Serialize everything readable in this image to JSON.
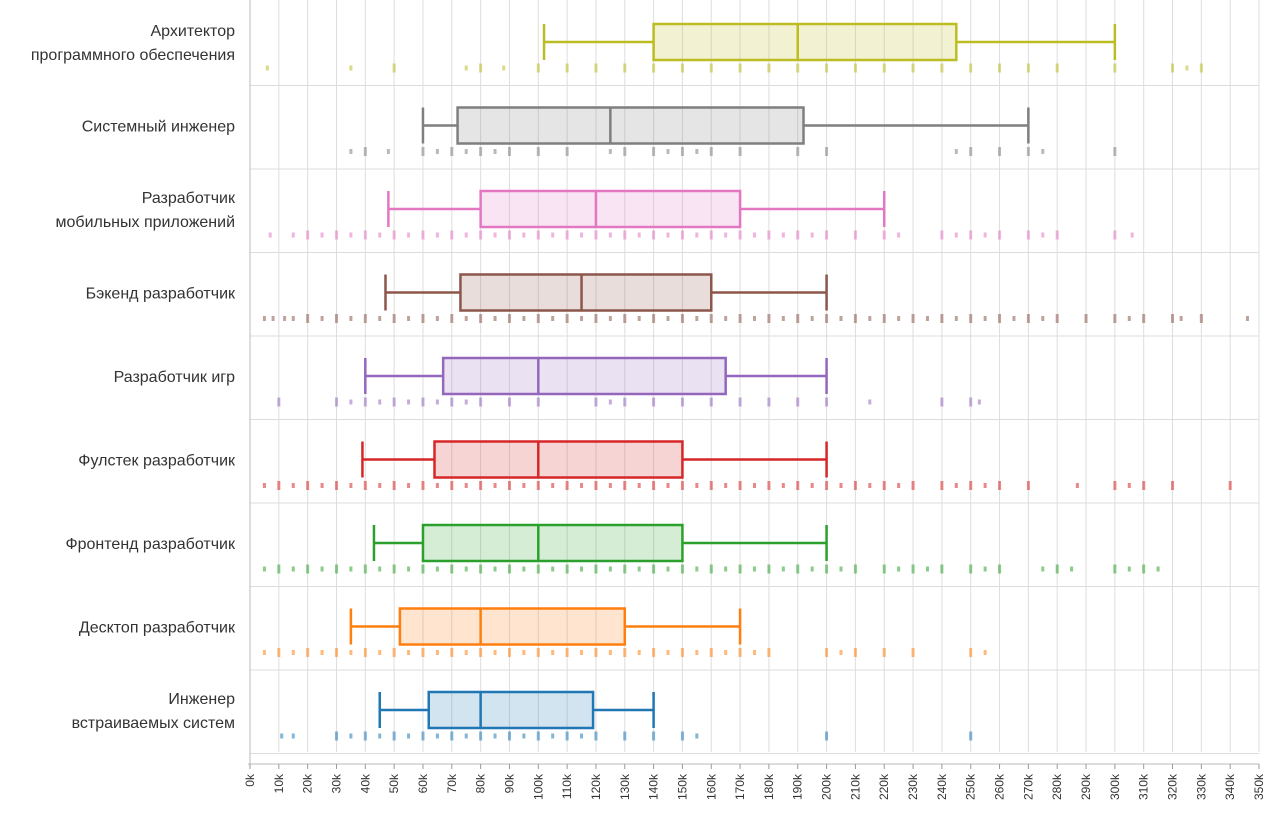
{
  "chart_data": {
    "type": "box",
    "orientation": "horizontal",
    "x_unit": "k",
    "xlim": [
      0,
      350
    ],
    "x_ticks": [
      "0k",
      "10k",
      "20k",
      "30k",
      "40k",
      "50k",
      "60k",
      "70k",
      "80k",
      "90k",
      "100k",
      "110k",
      "120k",
      "130k",
      "140k",
      "150k",
      "160k",
      "170k",
      "180k",
      "190k",
      "200k",
      "210k",
      "220k",
      "230k",
      "240k",
      "250k",
      "260k",
      "270k",
      "280k",
      "290k",
      "300k",
      "310k",
      "320k",
      "330k",
      "340k",
      "350k"
    ],
    "grid": true,
    "legend": "none",
    "categories": [
      {
        "label_lines": [
          "Архитектор",
          "программного обеспечения"
        ],
        "color": "#bcbd22",
        "box": {
          "whisker_low": 102,
          "q1": 140,
          "median": 190,
          "q3": 245,
          "whisker_high": 300
        },
        "points": [
          6,
          35,
          50,
          75,
          80,
          88,
          100,
          110,
          120,
          130,
          140,
          150,
          160,
          170,
          180,
          190,
          200,
          210,
          220,
          230,
          240,
          250,
          260,
          270,
          280,
          300,
          320,
          325,
          330
        ]
      },
      {
        "label_lines": [
          "Системный инженер"
        ],
        "color": "#7f7f7f",
        "box": {
          "whisker_low": 60,
          "q1": 72,
          "median": 125,
          "q3": 192,
          "whisker_high": 270
        },
        "points": [
          35,
          40,
          48,
          60,
          65,
          70,
          75,
          80,
          85,
          90,
          100,
          110,
          125,
          130,
          140,
          145,
          150,
          155,
          160,
          170,
          190,
          200,
          245,
          250,
          260,
          270,
          275,
          300
        ]
      },
      {
        "label_lines": [
          "Разработчик",
          "мобильных приложений"
        ],
        "color": "#e377c2",
        "box": {
          "whisker_low": 48,
          "q1": 80,
          "median": 120,
          "q3": 170,
          "whisker_high": 220
        },
        "points": [
          7,
          15,
          20,
          25,
          30,
          35,
          40,
          45,
          50,
          55,
          60,
          65,
          70,
          75,
          80,
          85,
          90,
          95,
          100,
          105,
          110,
          115,
          120,
          125,
          130,
          135,
          140,
          145,
          150,
          155,
          160,
          165,
          170,
          175,
          180,
          185,
          190,
          195,
          200,
          210,
          220,
          225,
          240,
          245,
          250,
          255,
          260,
          270,
          275,
          280,
          300,
          306
        ]
      },
      {
        "label_lines": [
          "Бэкенд разработчик"
        ],
        "color": "#8c564b",
        "box": {
          "whisker_low": 47,
          "q1": 73,
          "median": 115,
          "q3": 160,
          "whisker_high": 200
        },
        "points": [
          5,
          8,
          12,
          15,
          20,
          25,
          30,
          35,
          40,
          45,
          50,
          55,
          60,
          65,
          70,
          75,
          80,
          85,
          90,
          95,
          100,
          105,
          110,
          115,
          120,
          125,
          130,
          135,
          140,
          145,
          150,
          155,
          160,
          165,
          170,
          175,
          180,
          185,
          190,
          195,
          200,
          205,
          210,
          215,
          220,
          225,
          230,
          235,
          240,
          245,
          250,
          255,
          260,
          265,
          270,
          275,
          280,
          290,
          300,
          305,
          310,
          320,
          323,
          330,
          346
        ]
      },
      {
        "label_lines": [
          "Разработчик игр"
        ],
        "color": "#9467bd",
        "box": {
          "whisker_low": 40,
          "q1": 67,
          "median": 100,
          "q3": 165,
          "whisker_high": 200
        },
        "points": [
          10,
          30,
          35,
          40,
          45,
          50,
          55,
          60,
          65,
          70,
          75,
          80,
          90,
          100,
          120,
          125,
          130,
          140,
          150,
          160,
          170,
          180,
          190,
          200,
          215,
          240,
          250,
          253
        ]
      },
      {
        "label_lines": [
          "Фулстек разработчик"
        ],
        "color": "#d62728",
        "box": {
          "whisker_low": 39,
          "q1": 64,
          "median": 100,
          "q3": 150,
          "whisker_high": 200
        },
        "points": [
          5,
          10,
          15,
          20,
          25,
          30,
          35,
          40,
          45,
          50,
          55,
          60,
          65,
          70,
          75,
          80,
          85,
          90,
          95,
          100,
          105,
          110,
          115,
          120,
          125,
          130,
          135,
          140,
          145,
          150,
          155,
          160,
          165,
          170,
          175,
          180,
          185,
          190,
          195,
          200,
          205,
          210,
          215,
          220,
          225,
          230,
          240,
          245,
          250,
          255,
          260,
          270,
          287,
          300,
          305,
          310,
          320,
          340
        ]
      },
      {
        "label_lines": [
          "Фронтенд разработчик"
        ],
        "color": "#2ca02c",
        "box": {
          "whisker_low": 43,
          "q1": 60,
          "median": 100,
          "q3": 150,
          "whisker_high": 200
        },
        "points": [
          5,
          10,
          15,
          20,
          25,
          30,
          35,
          40,
          45,
          50,
          55,
          60,
          65,
          70,
          75,
          80,
          85,
          90,
          95,
          100,
          105,
          110,
          115,
          120,
          125,
          130,
          135,
          140,
          145,
          150,
          155,
          160,
          165,
          170,
          175,
          180,
          185,
          190,
          195,
          200,
          205,
          210,
          220,
          225,
          230,
          235,
          240,
          250,
          255,
          260,
          275,
          280,
          285,
          300,
          305,
          310,
          315
        ]
      },
      {
        "label_lines": [
          "Десктоп разработчик"
        ],
        "color": "#ff7f0e",
        "box": {
          "whisker_low": 35,
          "q1": 52,
          "median": 80,
          "q3": 130,
          "whisker_high": 170
        },
        "points": [
          5,
          10,
          15,
          20,
          25,
          30,
          35,
          40,
          45,
          50,
          55,
          60,
          65,
          70,
          75,
          80,
          85,
          90,
          95,
          100,
          105,
          110,
          115,
          120,
          125,
          130,
          135,
          140,
          145,
          150,
          155,
          160,
          165,
          170,
          175,
          180,
          200,
          205,
          210,
          220,
          230,
          250,
          255
        ]
      },
      {
        "label_lines": [
          "Инженер",
          "встраиваемых систем"
        ],
        "color": "#1f77b4",
        "box": {
          "whisker_low": 45,
          "q1": 62,
          "median": 80,
          "q3": 119,
          "whisker_high": 140
        },
        "points": [
          11,
          15,
          30,
          35,
          40,
          45,
          50,
          55,
          60,
          65,
          70,
          75,
          80,
          85,
          90,
          95,
          100,
          105,
          110,
          115,
          120,
          130,
          140,
          150,
          155,
          200,
          250
        ]
      }
    ]
  }
}
